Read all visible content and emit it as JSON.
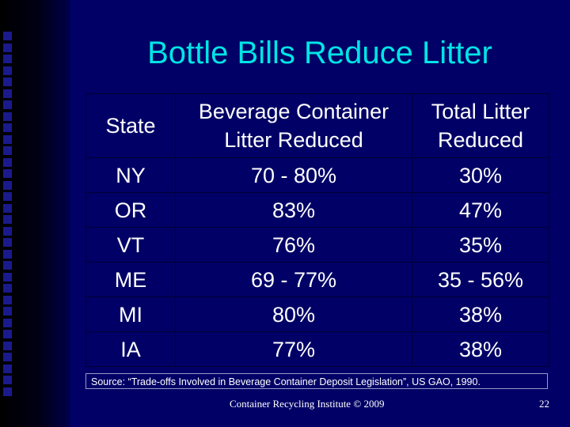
{
  "slide": {
    "title": "Bottle Bills Reduce Litter",
    "source": "Source: “Trade-offs Involved in Beverage Container Deposit Legislation”, US GAO, 1990.",
    "footer": "Container Recycling Institute © 2009",
    "page_number": "22"
  },
  "table": {
    "headers": [
      [
        "State"
      ],
      [
        "Beverage Container",
        "Litter Reduced"
      ],
      [
        "Total Litter",
        "Reduced"
      ]
    ],
    "rows": [
      [
        "NY",
        "70 - 80%",
        "30%"
      ],
      [
        "OR",
        "83%",
        "47%"
      ],
      [
        "VT",
        "76%",
        "35%"
      ],
      [
        "ME",
        "69 - 77%",
        "35 - 56%"
      ],
      [
        "MI",
        "80%",
        "38%"
      ],
      [
        "IA",
        "77%",
        "38%"
      ]
    ]
  },
  "colors": {
    "background": "#000066",
    "title": "#00e5e5",
    "text": "#ffffff",
    "bullet_squares": "#1a1a8c"
  }
}
